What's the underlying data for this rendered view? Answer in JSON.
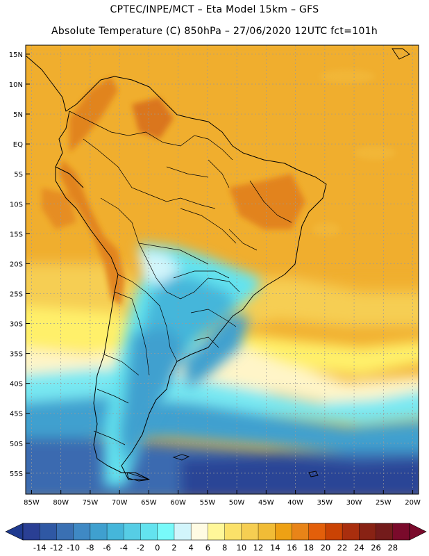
{
  "title_line1": "CPTEC/INPE/MCT –  Eta Model 15km – GFS",
  "title_line2": "Absolute Temperature (C) 850hPa – 27/06/2020 12UTC fct=101h",
  "map": {
    "lon_range": [
      -86,
      -19
    ],
    "lat_range": [
      -58.5,
      16.5
    ],
    "lat_labels": [
      "15N",
      "10N",
      "5N",
      "EQ",
      "5S",
      "10S",
      "15S",
      "20S",
      "25S",
      "30S",
      "35S",
      "40S",
      "45S",
      "50S",
      "55S"
    ],
    "lat_values": [
      15,
      10,
      5,
      0,
      -5,
      -10,
      -15,
      -20,
      -25,
      -30,
      -35,
      -40,
      -45,
      -50,
      -55
    ],
    "lon_labels": [
      "85W",
      "80W",
      "75W",
      "70W",
      "65W",
      "60W",
      "55W",
      "50W",
      "45W",
      "40W",
      "35W",
      "30W",
      "25W",
      "20W"
    ],
    "lon_values": [
      -85,
      -80,
      -75,
      -70,
      -65,
      -60,
      -55,
      -50,
      -45,
      -40,
      -35,
      -30,
      -25,
      -20
    ],
    "grid_color": "#9a9a9a",
    "coast_color": "#000000"
  },
  "legend": {
    "colors": [
      "#2a3f94",
      "#2f58a4",
      "#3a70b3",
      "#3f89c4",
      "#3fa0cf",
      "#45b6da",
      "#56cde5",
      "#63e3ef",
      "#78fafa",
      "#d2f5fb",
      "#fffbe3",
      "#fff799",
      "#fbe169",
      "#f6ce52",
      "#f1bc36",
      "#eea114",
      "#e88418",
      "#e35f0a",
      "#ca4304",
      "#a92e0e",
      "#882214",
      "#731b1b",
      "#7a0a2b"
    ],
    "tick_labels": [
      "-14",
      "-12",
      "-10",
      "-8",
      "-6",
      "-4",
      "-2",
      "0",
      "2",
      "4",
      "6",
      "8",
      "10",
      "12",
      "14",
      "16",
      "18",
      "20",
      "22",
      "24",
      "26",
      "28"
    ],
    "min_color": "#1f3a8f",
    "max_color": "#7a0a2b"
  }
}
